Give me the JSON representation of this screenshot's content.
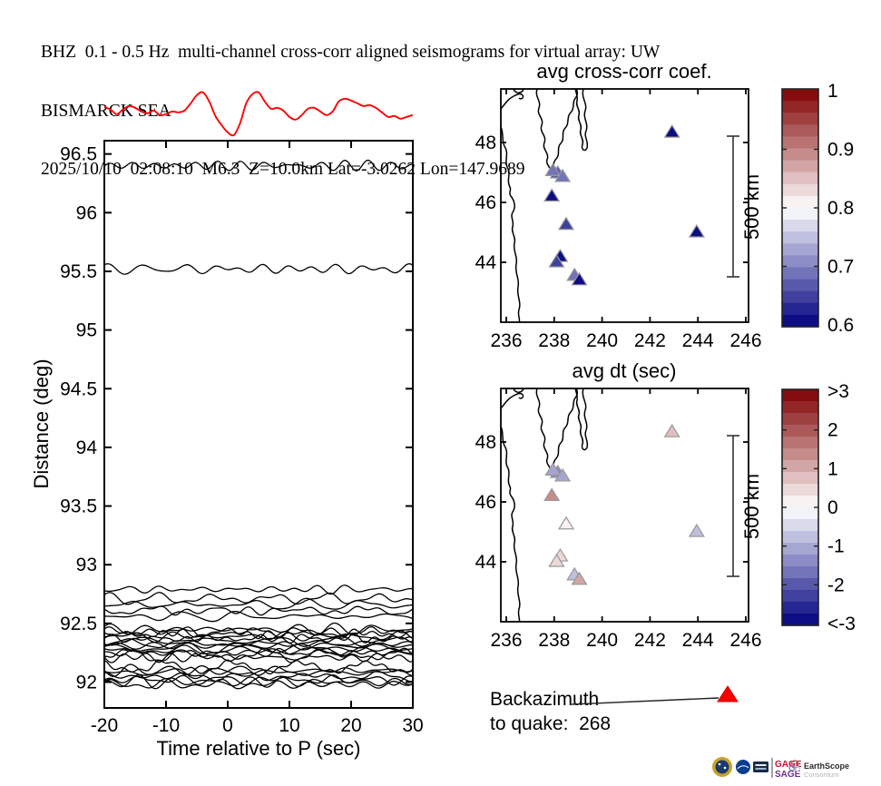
{
  "header": {
    "line1": "BHZ  0.1 - 0.5 Hz  multi-channel cross-corr aligned seismograms for virtual array: UW",
    "line2": "BISMARCK SEA",
    "line3": "2025/10/10  02:08:10  M6.3  Z=10.0km Lat=-3.0262 Lon=147.9689"
  },
  "backazimuth": {
    "label_line1": "Backazimuth",
    "label_line2": "to quake:  268",
    "value": 268
  },
  "logos": {
    "gage": "GAGE",
    "sage": "SAGE",
    "earthscope": "EarthScope",
    "consortium": "Consortium"
  },
  "colormap": {
    "negative_max": "#00007f",
    "center": "#ffffff",
    "positive_max": "#7f0000",
    "steps": 20
  },
  "chart_data": [
    {
      "type": "line",
      "panel": "aligned-seismograms",
      "xlabel": "Time relative to P (sec)",
      "ylabel": "Distance (deg)",
      "xlim": [
        -20,
        30
      ],
      "ylim": [
        91.78,
        96.61
      ],
      "xtick_values": [
        -20,
        -10,
        0,
        10,
        20,
        30
      ],
      "xtick_labels": [
        "-20",
        "-10",
        "0",
        "10",
        "20",
        "30"
      ],
      "ytick_values": [
        96.5,
        96,
        95.5,
        95,
        94.5,
        94,
        93.5,
        93,
        92.5,
        92
      ],
      "ytick_labels": [
        "96.5",
        "96",
        "95.5",
        "95",
        "94.5",
        "94",
        "93.5",
        "93",
        "92.5",
        "92"
      ],
      "grid": false,
      "trace_color": "#000000",
      "trace_distances": [
        96.4,
        95.52,
        92.79,
        92.71,
        92.66,
        92.61,
        92.56,
        92.45,
        92.43,
        92.41,
        92.39,
        92.37,
        92.35,
        92.33,
        92.31,
        92.29,
        92.27,
        92.25,
        92.23,
        92.21,
        92.13,
        92.1,
        92.08,
        92.05,
        92.02,
        92.0,
        91.98
      ],
      "beam": {
        "color": "#ff0000",
        "baseline_distance_deg": 96.87,
        "amplitude_units": "px",
        "points_t_amp": [
          [
            -20,
            4
          ],
          [
            -19,
            1
          ],
          [
            -18,
            -4
          ],
          [
            -17,
            1
          ],
          [
            -16,
            5
          ],
          [
            -15,
            3
          ],
          [
            -14,
            -1
          ],
          [
            -13,
            -3
          ],
          [
            -12,
            0
          ],
          [
            -11,
            -5
          ],
          [
            -10,
            -4
          ],
          [
            -9,
            -1
          ],
          [
            -8,
            -2
          ],
          [
            -7,
            0
          ],
          [
            -6,
            8
          ],
          [
            -5,
            17
          ],
          [
            -4,
            20
          ],
          [
            -3,
            10
          ],
          [
            -2,
            -6
          ],
          [
            -1,
            -16
          ],
          [
            0,
            -24
          ],
          [
            1,
            -27
          ],
          [
            2,
            -14
          ],
          [
            3,
            8
          ],
          [
            4,
            18
          ],
          [
            5,
            20
          ],
          [
            6,
            10
          ],
          [
            7,
            2
          ],
          [
            8,
            3
          ],
          [
            9,
            0
          ],
          [
            10,
            -7
          ],
          [
            11,
            -10
          ],
          [
            12,
            -5
          ],
          [
            13,
            2
          ],
          [
            14,
            3
          ],
          [
            15,
            -1
          ],
          [
            16,
            -5
          ],
          [
            17,
            -1
          ],
          [
            18,
            10
          ],
          [
            19,
            13
          ],
          [
            20,
            11
          ],
          [
            21,
            8
          ],
          [
            22,
            5
          ],
          [
            23,
            6
          ],
          [
            24,
            3
          ],
          [
            25,
            -2
          ],
          [
            26,
            -7
          ],
          [
            27,
            -6
          ],
          [
            28,
            -9
          ],
          [
            29,
            -7
          ],
          [
            30,
            -5
          ]
        ]
      }
    },
    {
      "type": "scatter",
      "panel": "map-avg-cross-corr",
      "title": "avg cross-corr coef.",
      "lon_range": [
        235.77,
        246.11
      ],
      "lat_range": [
        42.0,
        49.79
      ],
      "xtick_values": [
        236,
        238,
        240,
        242,
        244,
        246
      ],
      "xtick_labels": [
        "236",
        "238",
        "240",
        "242",
        "244",
        "246"
      ],
      "ytick_values": [
        44,
        46,
        48
      ],
      "ytick_labels": [
        "44",
        "46",
        "48"
      ],
      "scalebar_label": "500 km",
      "marker": "triangle",
      "colorbar": {
        "labels": [
          "1",
          "0.9",
          "0.8",
          "0.7",
          "0.6"
        ],
        "vmin": 0.6,
        "vmax": 1.0,
        "vcenter": 0.8
      },
      "stations": [
        {
          "lon": 242.92,
          "lat": 48.33,
          "cc": 0.6,
          "dt": 0.8
        },
        {
          "lon": 238.15,
          "lat": 46.97,
          "cc": 0.67,
          "dt": -1.3
        },
        {
          "lon": 237.95,
          "lat": 47.05,
          "cc": 0.7,
          "dt": -1.2
        },
        {
          "lon": 238.35,
          "lat": 46.85,
          "cc": 0.7,
          "dt": -1.1
        },
        {
          "lon": 237.9,
          "lat": 46.2,
          "cc": 0.61,
          "dt": 1.3
        },
        {
          "lon": 238.5,
          "lat": 45.25,
          "cc": 0.66,
          "dt": 0.25
        },
        {
          "lon": 243.95,
          "lat": 45.0,
          "cc": 0.6,
          "dt": -0.9
        },
        {
          "lon": 238.25,
          "lat": 44.18,
          "cc": 0.62,
          "dt": 0.55
        },
        {
          "lon": 238.1,
          "lat": 44.0,
          "cc": 0.65,
          "dt": 0.5
        },
        {
          "lon": 238.85,
          "lat": 43.55,
          "cc": 0.7,
          "dt": -0.85
        },
        {
          "lon": 239.05,
          "lat": 43.4,
          "cc": 0.61,
          "dt": 1.1
        }
      ]
    },
    {
      "type": "scatter",
      "panel": "map-avg-dt",
      "title": "avg dt (sec)",
      "xtick_labels": [
        "236",
        "238",
        "240",
        "242",
        "244",
        "246"
      ],
      "ytick_labels": [
        "44",
        "46",
        "48"
      ],
      "scalebar_label": "500 km",
      "marker": "triangle",
      "colorbar": {
        "labels": [
          ">3",
          "2",
          "1",
          "0",
          "-1",
          "-2",
          "<-3"
        ],
        "vmin": -3,
        "vmax": 3,
        "vcenter": 0
      }
    }
  ]
}
